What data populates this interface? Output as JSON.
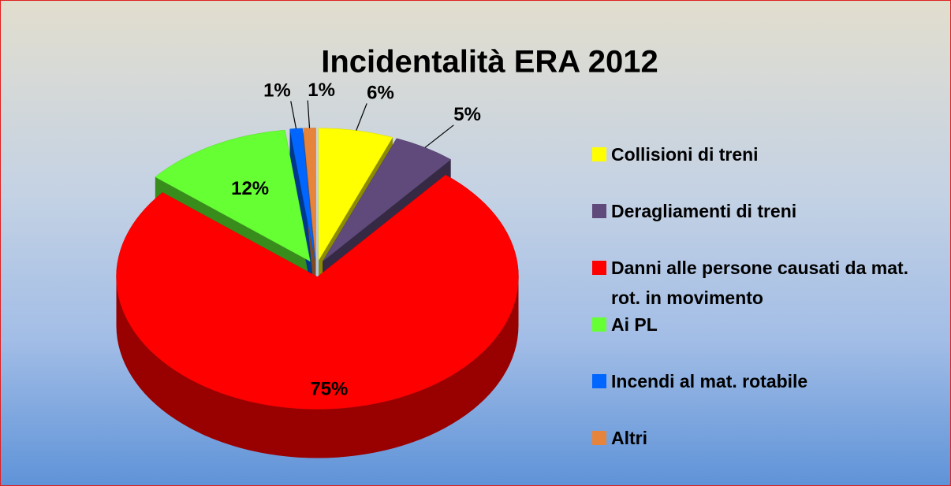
{
  "chart_data": {
    "type": "pie",
    "title": "Incidentalità ERA 2012",
    "categories": [
      "Collisioni di treni",
      "Deragliamenti di treni",
      "Danni alle persone causati da mat. rot. in movimento",
      "Ai PL",
      "Incendi al mat. rotabile",
      "Altri"
    ],
    "values": [
      6,
      5,
      75,
      12,
      1,
      1
    ],
    "value_labels": [
      "6%",
      "5%",
      "75%",
      "12%",
      "1%",
      "1%"
    ],
    "colors": [
      "#ffff00",
      "#604a7b",
      "#ff0000",
      "#66ff33",
      "#0066ff",
      "#e6843c"
    ],
    "legend": "right"
  }
}
